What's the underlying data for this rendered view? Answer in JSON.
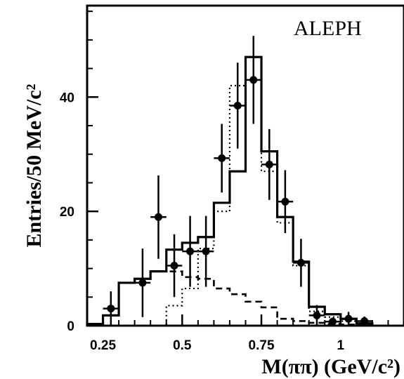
{
  "chart_data": {
    "type": "histogram",
    "xlabel": "M(ππ) (GeV/c²)",
    "ylabel": "Entries/50 MeV/c²",
    "experiment_label": "ALEPH",
    "xlim": [
      0.2,
      1.2
    ],
    "ylim": [
      0,
      56
    ],
    "x_ticks": [
      0.25,
      0.5,
      0.75,
      1.0
    ],
    "x_tick_labels": [
      "0.25",
      "0.5",
      "0.75",
      "1"
    ],
    "y_ticks": [
      0,
      20,
      40
    ],
    "y_tick_labels": [
      "0",
      "20",
      "40"
    ],
    "bin_edges": [
      0.2,
      0.25,
      0.3,
      0.35,
      0.4,
      0.45,
      0.5,
      0.55,
      0.6,
      0.65,
      0.7,
      0.75,
      0.8,
      0.85,
      0.9,
      0.95,
      1.0,
      1.05,
      1.1
    ],
    "series": [
      {
        "kind": "data-points",
        "x": [
          0.275,
          0.375,
          0.425,
          0.475,
          0.525,
          0.575,
          0.625,
          0.675,
          0.725,
          0.775,
          0.825,
          0.875,
          0.925,
          0.975,
          1.025,
          1.075
        ],
        "y": [
          3,
          7.5,
          19,
          10.5,
          13,
          13,
          29.3,
          38.5,
          43,
          28.2,
          21.7,
          11,
          1.8,
          0.7,
          1.2,
          0.8
        ],
        "yerr": [
          3,
          6,
          7.3,
          5.5,
          6.2,
          6.2,
          6,
          7.5,
          7.7,
          6.2,
          5.5,
          4.2,
          1.8,
          0.7,
          1.2,
          0.8
        ],
        "color": "#000000"
      },
      {
        "kind": "step-solid",
        "values": [
          0.3,
          1.8,
          7.5,
          8.2,
          9.5,
          13.3,
          14.5,
          15.5,
          21.5,
          27,
          47,
          30.5,
          19,
          11.2,
          3.3,
          2,
          1.2,
          0.4
        ],
        "color": "#000000"
      },
      {
        "kind": "step-dotted",
        "values": [
          0,
          0,
          0,
          0,
          0,
          3.5,
          6.5,
          13.5,
          20,
          42,
          43,
          27,
          18,
          10.5,
          2.5,
          1.5,
          0.8,
          0.3
        ],
        "color": "#000000"
      },
      {
        "kind": "step-dashed",
        "values": [
          0.3,
          1.8,
          7.5,
          8.2,
          9.5,
          9.5,
          8.5,
          8.2,
          6.5,
          5.5,
          4.2,
          3.2,
          1.2,
          0.8,
          0.5,
          0.3,
          0.2,
          0.1
        ],
        "color": "#000000"
      }
    ],
    "grid": false,
    "legend": "none"
  }
}
